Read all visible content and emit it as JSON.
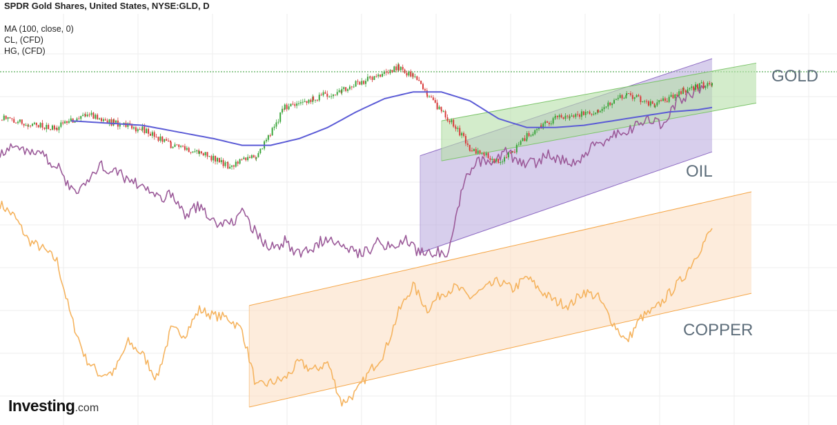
{
  "header": {
    "title": "SPDR Gold Shares, United States, NYSE:GLD, D",
    "indicators": [
      "MA (100, close, 0)",
      "CL,  (CFD)",
      "HG,  (CFD)"
    ]
  },
  "logo": {
    "main": "Investing",
    "suffix": ".com"
  },
  "colors": {
    "gold_up": "#3aa43a",
    "gold_down": "#d93a3a",
    "ma": "#5b5bd6",
    "oil": "#9b5a99",
    "copper": "#f5b35e",
    "gold_channel": "#b5dfa8",
    "oil_channel": "#b7a6dc",
    "copper_channel": "#fbe0c4",
    "label": "#5d6d7a",
    "grid": "#eeeeee"
  },
  "chart_data": [
    {
      "type": "line",
      "symbol": "GLD",
      "series": [
        {
          "name": "GOLD",
          "x": [
            0,
            4,
            8,
            12,
            16,
            20,
            24,
            28,
            32,
            36,
            40,
            44,
            48,
            52,
            56,
            58,
            60,
            62,
            64,
            66,
            68,
            70,
            72,
            74,
            76,
            78,
            80,
            84,
            88,
            92,
            96,
            100
          ],
          "y": [
            84,
            80,
            79,
            85,
            81,
            78,
            71,
            68,
            62,
            66,
            88,
            92,
            96,
            101,
            106,
            102,
            94,
            86,
            79,
            70,
            67,
            64,
            68,
            75,
            80,
            83,
            84,
            87,
            94,
            89,
            96,
            99
          ]
        },
        {
          "name": "MA (100, close, 0)",
          "x": [
            10,
            15,
            20,
            25,
            30,
            34,
            38,
            42,
            46,
            50,
            54,
            58,
            62,
            66,
            70,
            74,
            78,
            82,
            86,
            90,
            94,
            98,
            100
          ],
          "y": [
            82,
            81,
            80,
            77,
            74,
            71,
            71,
            74,
            79,
            86,
            92,
            95,
            95,
            91,
            83,
            79,
            79,
            80,
            82,
            84,
            86,
            87,
            88
          ]
        }
      ],
      "channel": {
        "from_x": 62,
        "to_x": 100,
        "top_y": [
          82,
          108
        ],
        "bottom_y": [
          64,
          90
        ]
      }
    },
    {
      "type": "line",
      "symbol": "CL",
      "series": [
        {
          "name": "OIL",
          "x": [
            0,
            2,
            4,
            6,
            8,
            10,
            12,
            14,
            16,
            18,
            20,
            22,
            24,
            26,
            28,
            30,
            32,
            34,
            36,
            38,
            40,
            42,
            44,
            46,
            48,
            50,
            52,
            53,
            55,
            57,
            59,
            61,
            63,
            65,
            67,
            69,
            71,
            73,
            75,
            77,
            79,
            81,
            83,
            85,
            87,
            89,
            91,
            93,
            95,
            97,
            99
          ],
          "y": [
            62,
            64,
            63,
            60,
            55,
            42,
            45,
            55,
            52,
            48,
            45,
            38,
            40,
            30,
            34,
            26,
            25,
            30,
            20,
            12,
            16,
            9,
            13,
            18,
            16,
            10,
            12,
            16,
            13,
            16,
            10,
            10,
            11,
            45,
            58,
            55,
            62,
            57,
            56,
            60,
            58,
            56,
            64,
            68,
            72,
            75,
            78,
            76,
            88,
            92,
            96
          ]
        }
      ],
      "channel": {
        "from_x": 59,
        "to_x": 100,
        "top_y": [
          60,
          110
        ],
        "bottom_y": [
          10,
          62
        ]
      }
    },
    {
      "type": "line",
      "symbol": "HG",
      "series": [
        {
          "name": "COPPER",
          "x": [
            0,
            2,
            4,
            6,
            8,
            10,
            12,
            14,
            16,
            18,
            20,
            22,
            24,
            26,
            28,
            30,
            32,
            34,
            36,
            38,
            40,
            42,
            44,
            46,
            48,
            50,
            52,
            54,
            56,
            58,
            60,
            62,
            64,
            66,
            68,
            70,
            72,
            74,
            76,
            78,
            80,
            82,
            84,
            86,
            88,
            90,
            92,
            94,
            96,
            98,
            100
          ],
          "y": [
            98,
            92,
            80,
            76,
            70,
            42,
            22,
            14,
            15,
            30,
            24,
            12,
            36,
            34,
            46,
            43,
            42,
            36,
            8,
            10,
            12,
            20,
            16,
            20,
            0,
            5,
            16,
            25,
            45,
            58,
            46,
            54,
            57,
            52,
            56,
            60,
            56,
            62,
            55,
            50,
            48,
            55,
            52,
            40,
            30,
            42,
            46,
            54,
            62,
            74,
            86
          ]
        }
      ],
      "channel": {
        "from_x": 35,
        "to_x": 100,
        "top_y": [
          48,
          104
        ],
        "bottom_y": [
          -2,
          54
        ]
      }
    }
  ],
  "annotations": [
    "GOLD",
    "OIL",
    "COPPER"
  ]
}
